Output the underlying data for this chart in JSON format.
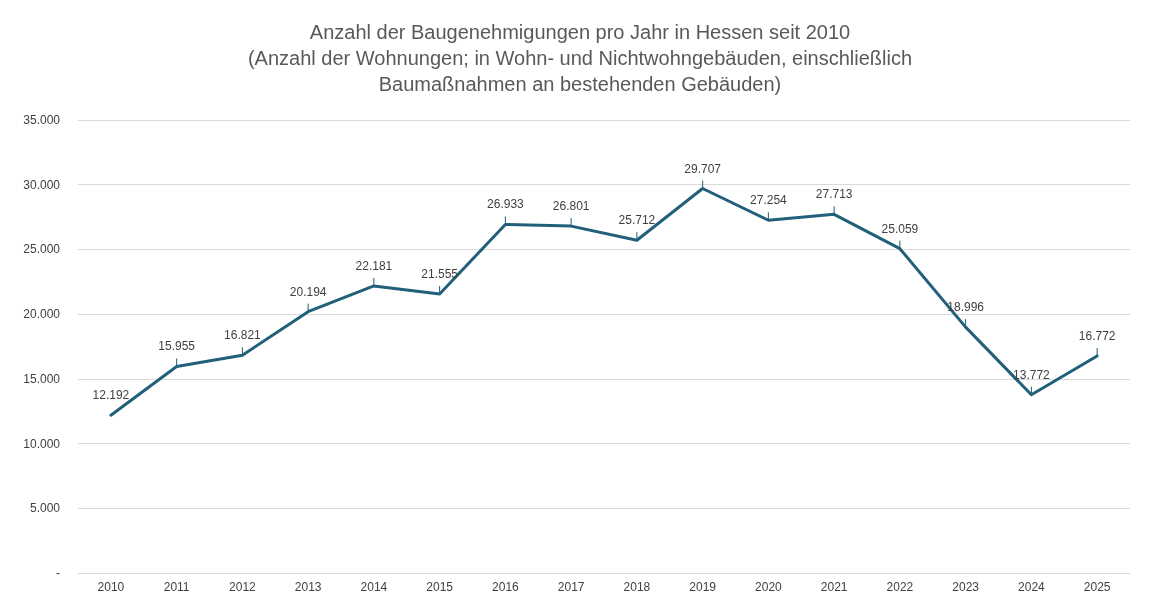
{
  "chart_data": {
    "type": "line",
    "title": "Anzahl der Baugenehmigungen pro Jahr in Hessen seit 2010\n(Anzahl der Wohnungen; in Wohn- und Nichtwohngebäuden, einschließlich\nBaumaßnahmen an bestehenden Gebäuden)",
    "categories": [
      "2010",
      "2011",
      "2012",
      "2013",
      "2014",
      "2015",
      "2016",
      "2017",
      "2018",
      "2019",
      "2020",
      "2021",
      "2022",
      "2023",
      "2024",
      "2025"
    ],
    "series": [
      {
        "color": "#215f7a",
        "values": [
          12192,
          15955,
          16821,
          20194,
          22181,
          21555,
          26933,
          26801,
          25712,
          29707,
          27254,
          27713,
          25059,
          18996,
          13772,
          16772
        ],
        "value_labels": [
          "12.192",
          "15.955",
          "16.821",
          "20.194",
          "22.181",
          "21.555",
          "26.933",
          "26.801",
          "25.712",
          "29.707",
          "27.254",
          "27.713",
          "25.059",
          "18.996",
          "13.772",
          "16.772"
        ]
      }
    ],
    "ylim": [
      0,
      35000
    ],
    "yticks": [
      {
        "value": 0,
        "label": "-"
      },
      {
        "value": 5000,
        "label": "5.000"
      },
      {
        "value": 10000,
        "label": "10.000"
      },
      {
        "value": 15000,
        "label": "15.000"
      },
      {
        "value": 20000,
        "label": "20.000"
      },
      {
        "value": 25000,
        "label": "25.000"
      },
      {
        "value": 30000,
        "label": "30.000"
      },
      {
        "value": 35000,
        "label": "35.000"
      }
    ],
    "grid": "y",
    "marker": "none",
    "line_style": "solid"
  }
}
